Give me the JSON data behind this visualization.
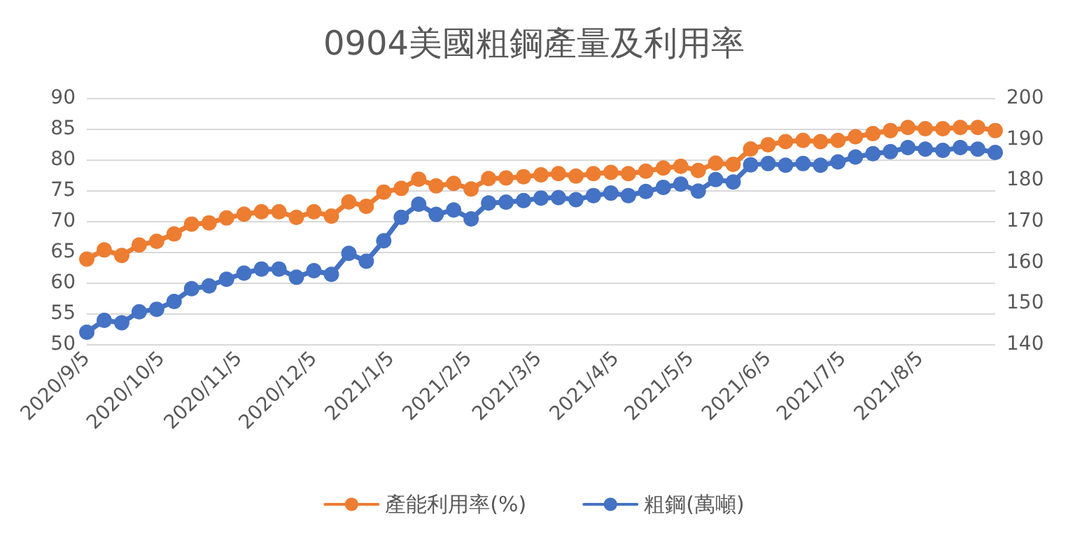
{
  "chart_data": {
    "type": "line",
    "title": "0904美國粗鋼產量及利用率",
    "x": [
      "2020-09-05",
      "2020-09-12",
      "2020-09-19",
      "2020-09-26",
      "2020-10-03",
      "2020-10-10",
      "2020-10-17",
      "2020-10-24",
      "2020-10-31",
      "2020-11-07",
      "2020-11-14",
      "2020-11-21",
      "2020-11-28",
      "2020-12-05",
      "2020-12-12",
      "2020-12-19",
      "2020-12-26",
      "2021-01-02",
      "2021-01-09",
      "2021-01-16",
      "2021-01-23",
      "2021-01-30",
      "2021-02-06",
      "2021-02-13",
      "2021-02-20",
      "2021-02-27",
      "2021-03-06",
      "2021-03-13",
      "2021-03-20",
      "2021-03-27",
      "2021-04-03",
      "2021-04-10",
      "2021-04-17",
      "2021-04-24",
      "2021-05-01",
      "2021-05-08",
      "2021-05-15",
      "2021-05-22",
      "2021-05-29",
      "2021-06-05",
      "2021-06-12",
      "2021-06-19",
      "2021-06-26",
      "2021-07-03",
      "2021-07-10",
      "2021-07-17",
      "2021-07-24",
      "2021-07-31",
      "2021-08-07",
      "2021-08-14",
      "2021-08-21",
      "2021-08-28",
      "2021-09-04"
    ],
    "series": [
      {
        "name": "產能利用率(%)",
        "color": "#ed7d31",
        "values": [
          63.8,
          65.3,
          64.4,
          66.1,
          66.7,
          67.9,
          69.5,
          69.7,
          70.5,
          71.1,
          71.5,
          71.5,
          70.6,
          71.5,
          70.8,
          73.1,
          72.4,
          74.7,
          75.3,
          76.8,
          75.7,
          76.1,
          75.2,
          76.9,
          77.0,
          77.2,
          77.5,
          77.7,
          77.3,
          77.7,
          77.9,
          77.7,
          78.1,
          78.6,
          78.9,
          78.2,
          79.4,
          79.2,
          81.7,
          82.4,
          82.9,
          83.1,
          82.9,
          83.1,
          83.7,
          84.2,
          84.7,
          85.2,
          85.0,
          85.0,
          85.2,
          85.2,
          84.7
        ]
      },
      {
        "name": "粗鋼(萬噸)",
        "color": "#4472c4",
        "axis": "y2",
        "values": [
          142.9,
          145.8,
          145.2,
          147.9,
          148.5,
          150.4,
          153.5,
          154.2,
          155.8,
          157.3,
          158.3,
          158.3,
          156.3,
          157.9,
          157.0,
          162.1,
          160.2,
          165.2,
          170.9,
          174.1,
          171.6,
          172.7,
          170.5,
          174.4,
          174.6,
          175.0,
          175.6,
          175.7,
          175.2,
          176.2,
          176.8,
          176.2,
          177.2,
          178.2,
          179.0,
          177.3,
          180.1,
          179.5,
          183.7,
          184.0,
          183.6,
          184.0,
          183.6,
          184.4,
          185.6,
          186.4,
          186.9,
          187.9,
          187.5,
          187.2,
          187.9,
          187.5,
          186.7
        ]
      }
    ],
    "xlim": [
      "2020-09-05",
      "2021-09-04"
    ],
    "xticks": [
      {
        "value": "2020-09-05",
        "label": "2020/9/5"
      },
      {
        "value": "2020-10-05",
        "label": "2020/10/5"
      },
      {
        "value": "2020-11-05",
        "label": "2020/11/5"
      },
      {
        "value": "2020-12-05",
        "label": "2020/12/5"
      },
      {
        "value": "2021-01-05",
        "label": "2021/1/5"
      },
      {
        "value": "2021-02-05",
        "label": "2021/2/5"
      },
      {
        "value": "2021-03-05",
        "label": "2021/3/5"
      },
      {
        "value": "2021-04-05",
        "label": "2021/4/5"
      },
      {
        "value": "2021-05-05",
        "label": "2021/5/5"
      },
      {
        "value": "2021-06-05",
        "label": "2021/6/5"
      },
      {
        "value": "2021-07-05",
        "label": "2021/7/5"
      },
      {
        "value": "2021-08-05",
        "label": "2021/8/5"
      }
    ],
    "ylim": [
      50,
      90
    ],
    "yticks": [
      50,
      55,
      60,
      65,
      70,
      75,
      80,
      85,
      90
    ],
    "y2lim": [
      140,
      200
    ],
    "y2ticks": [
      140,
      150,
      160,
      170,
      180,
      190,
      200
    ],
    "grid": "y",
    "legend": "bottom",
    "marker": "circle",
    "line_style": "solid"
  }
}
